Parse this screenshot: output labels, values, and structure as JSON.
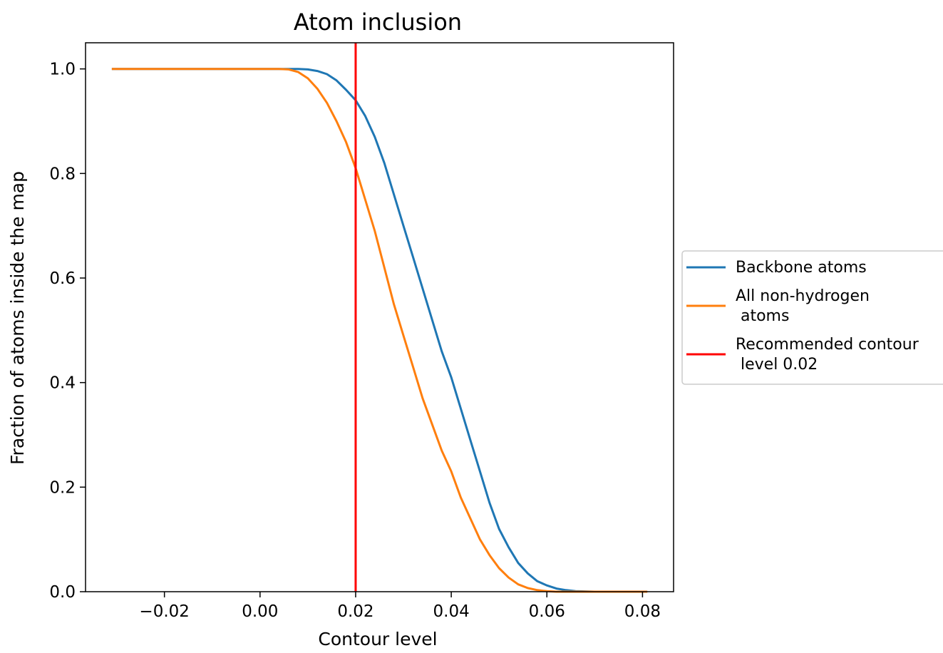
{
  "chart_data": {
    "type": "line",
    "title": "Atom inclusion",
    "xlabel": "Contour level",
    "ylabel": "Fraction of atoms inside the map",
    "xlim": [
      -0.0365,
      0.0865
    ],
    "ylim": [
      -0.0,
      1.05
    ],
    "xticks": [
      -0.02,
      0.0,
      0.02,
      0.04,
      0.06,
      0.08
    ],
    "xtick_labels": [
      "−0.02",
      "0.00",
      "0.02",
      "0.04",
      "0.06",
      "0.08"
    ],
    "yticks": [
      0.0,
      0.2,
      0.4,
      0.6,
      0.8,
      1.0
    ],
    "ytick_labels": [
      "0.0",
      "0.2",
      "0.4",
      "0.6",
      "0.8",
      "1.0"
    ],
    "grid": false,
    "legend_position": "outside-right",
    "series": [
      {
        "name": "Backbone atoms",
        "color": "#1f77b4",
        "x": [
          -0.031,
          0.0,
          0.005,
          0.008,
          0.01,
          0.012,
          0.014,
          0.016,
          0.018,
          0.02,
          0.022,
          0.024,
          0.026,
          0.028,
          0.03,
          0.032,
          0.034,
          0.036,
          0.038,
          0.04,
          0.042,
          0.044,
          0.046,
          0.048,
          0.05,
          0.052,
          0.054,
          0.056,
          0.058,
          0.06,
          0.062,
          0.064,
          0.066,
          0.07,
          0.075,
          0.081
        ],
        "y": [
          1.0,
          1.0,
          1.0,
          1.0,
          0.999,
          0.996,
          0.99,
          0.978,
          0.96,
          0.94,
          0.91,
          0.87,
          0.82,
          0.76,
          0.7,
          0.64,
          0.58,
          0.52,
          0.46,
          0.41,
          0.35,
          0.29,
          0.23,
          0.17,
          0.12,
          0.085,
          0.055,
          0.035,
          0.02,
          0.012,
          0.006,
          0.003,
          0.001,
          0.0,
          0.0,
          0.0
        ]
      },
      {
        "name": "All non-hydrogen\n atoms",
        "color": "#ff7f0e",
        "x": [
          -0.031,
          0.0,
          0.004,
          0.006,
          0.008,
          0.01,
          0.012,
          0.014,
          0.016,
          0.018,
          0.02,
          0.022,
          0.024,
          0.026,
          0.028,
          0.03,
          0.032,
          0.034,
          0.036,
          0.038,
          0.04,
          0.042,
          0.044,
          0.046,
          0.048,
          0.05,
          0.052,
          0.054,
          0.056,
          0.058,
          0.06,
          0.062,
          0.064,
          0.068,
          0.075,
          0.081
        ],
        "y": [
          1.0,
          1.0,
          1.0,
          0.999,
          0.994,
          0.982,
          0.962,
          0.935,
          0.9,
          0.86,
          0.81,
          0.75,
          0.69,
          0.62,
          0.55,
          0.49,
          0.43,
          0.37,
          0.32,
          0.27,
          0.23,
          0.18,
          0.14,
          0.1,
          0.07,
          0.045,
          0.027,
          0.014,
          0.007,
          0.003,
          0.001,
          0.0,
          0.0,
          0.0,
          0.0,
          0.0
        ]
      }
    ],
    "vline": {
      "name": "Recommended contour\n level 0.02",
      "x": 0.02,
      "color": "#ff0000"
    }
  }
}
